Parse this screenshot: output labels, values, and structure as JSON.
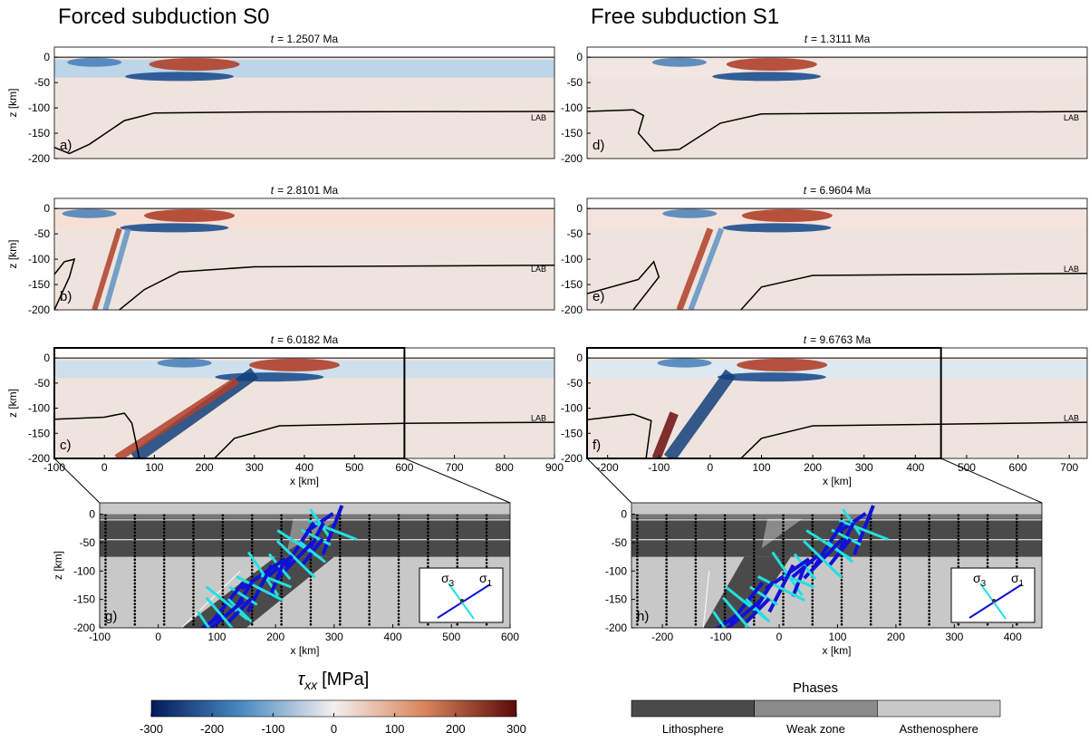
{
  "column_titles": [
    "Forced subduction S0",
    "Free subduction S1"
  ],
  "panels": [
    {
      "label": "a)",
      "time_var": "t",
      "time": "= 1.2507 Ma",
      "lab": "LAB",
      "ylabel": "z [km]",
      "xlim": [
        -100,
        900
      ],
      "ylim": [
        -200,
        20
      ],
      "yticks": [
        0,
        -50,
        -100,
        -150,
        -200
      ]
    },
    {
      "label": "b)",
      "time_var": "t",
      "time": "= 2.8101 Ma",
      "lab": "LAB",
      "ylabel": "z [km]",
      "xlim": [
        -100,
        900
      ],
      "ylim": [
        -200,
        20
      ],
      "yticks": [
        0,
        -50,
        -100,
        -150,
        -200
      ]
    },
    {
      "label": "c)",
      "time_var": "t",
      "time": "= 6.0182 Ma",
      "lab": "LAB",
      "ylabel": "z [km]",
      "xlabel": "x [km]",
      "xlim": [
        -100,
        900
      ],
      "ylim": [
        -200,
        20
      ],
      "yticks": [
        0,
        -50,
        -100,
        -150,
        -200
      ],
      "xticks": [
        -100,
        0,
        100,
        200,
        300,
        400,
        500,
        600,
        700,
        800,
        900
      ]
    },
    {
      "label": "d)",
      "time_var": "t",
      "time": "= 1.3111 Ma",
      "lab": "LAB",
      "xlim": [
        -240,
        735
      ],
      "ylim": [
        -200,
        20
      ],
      "yticks": [
        0,
        -50,
        -100,
        -150,
        -200
      ]
    },
    {
      "label": "e)",
      "time_var": "t",
      "time": "= 6.9604 Ma",
      "lab": "LAB",
      "xlim": [
        -240,
        735
      ],
      "ylim": [
        -200,
        20
      ],
      "yticks": [
        0,
        -50,
        -100,
        -150,
        -200
      ]
    },
    {
      "label": "f)",
      "time_var": "t",
      "time": "= 9.6763 Ma",
      "lab": "LAB",
      "xlabel": "x [km]",
      "xlim": [
        -240,
        735
      ],
      "ylim": [
        -200,
        20
      ],
      "yticks": [
        0,
        -50,
        -100,
        -150,
        -200
      ],
      "xticks": [
        -200,
        -100,
        0,
        100,
        200,
        300,
        400,
        500,
        600,
        700
      ]
    }
  ],
  "zoom_panels": [
    {
      "label": "g)",
      "ylabel": "z [km]",
      "xlabel": "x [km]",
      "xlim": [
        -100,
        600
      ],
      "ylim": [
        -200,
        20
      ],
      "xticks": [
        -100,
        0,
        100,
        200,
        300,
        400,
        500,
        600
      ],
      "yticks": [
        0,
        -50,
        -100,
        -150,
        -200
      ],
      "legend": {
        "sigma3": {
          "symbol": "σ",
          "sub": "3"
        },
        "sigma1": {
          "symbol": "σ",
          "sub": "1"
        }
      }
    },
    {
      "label": "h)",
      "xlabel": "x [km]",
      "xlim": [
        -253,
        450
      ],
      "ylim": [
        -200,
        20
      ],
      "xticks": [
        -200,
        -100,
        0,
        100,
        200,
        300,
        400
      ],
      "yticks": [
        0,
        -50,
        -100,
        -150,
        -200
      ],
      "legend": {
        "sigma3": {
          "symbol": "σ",
          "sub": "3"
        },
        "sigma1": {
          "symbol": "σ",
          "sub": "1"
        }
      }
    }
  ],
  "colorbar": {
    "symbol": "τ",
    "sub": "xx",
    "unit": "[MPa]",
    "lim": [
      -300,
      300
    ],
    "ticks": [
      -300,
      -200,
      -100,
      0,
      100,
      200,
      300
    ]
  },
  "phases": {
    "title": "Phases",
    "labels": [
      "Lithosphere",
      "Weak zone",
      "Asthenosphere"
    ],
    "colors": [
      "#4a4a4a",
      "#8a8a8a",
      "#c8c8c8"
    ]
  }
}
